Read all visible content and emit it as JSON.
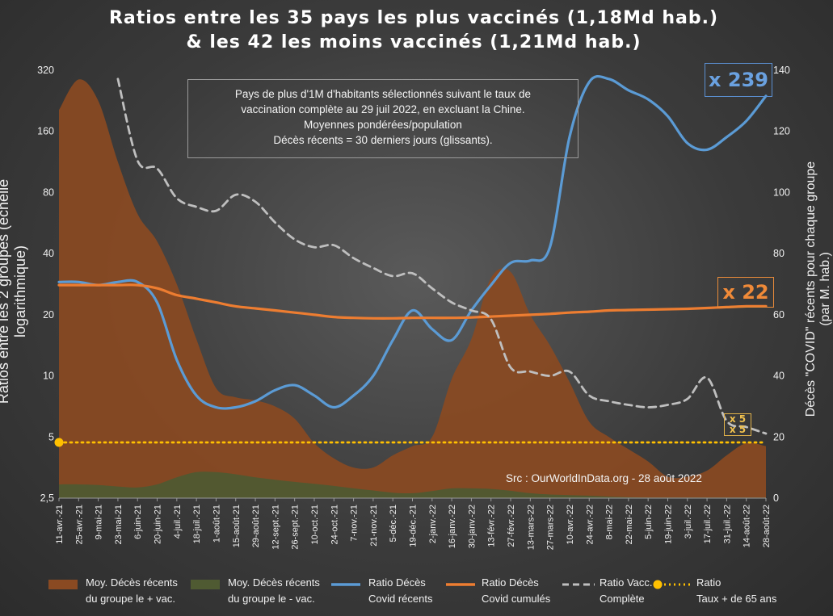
{
  "title_line1": "Ratios entre les 35 pays les plus vaccinés (1,18Md hab.)",
  "title_line2": "& les 42 les moins vaccinés (1,21Md hab.)",
  "note_lines": [
    "Pays de plus d'1M d'habitants sélectionnés suivant le taux de",
    "vaccination complète au 29 juil 2022, en excluant la Chine.",
    "Moyennes pondérées/population",
    "Décès récents = 30 derniers jours (glissants)."
  ],
  "source": "Src : OurWorldInData.org - 28 août 2022",
  "badges": {
    "blue": "x 239",
    "orange": "x 22",
    "small_top": "x 5",
    "small_bottom": "x 5"
  },
  "colors": {
    "brown_area": "#8a4a22",
    "green_area": "#4f5a32",
    "blue_line": "#5b9bd5",
    "orange_line": "#ed7d31",
    "grey_dash": "#bfbfbf",
    "yellow_dot": "#ffc000"
  },
  "chart_data": {
    "type": "line",
    "x": [
      "11-avr.-21",
      "25-avr.-21",
      "9-mai-21",
      "23-mai-21",
      "6-juin-21",
      "20-juin-21",
      "4-juil.-21",
      "18-juil.-21",
      "1-août-21",
      "15-août-21",
      "29-août-21",
      "12-sept.-21",
      "26-sept.-21",
      "10-oct.-21",
      "24-oct.-21",
      "7-nov.-21",
      "21-nov.-21",
      "5-déc.-21",
      "19-déc.-21",
      "2-janv.-22",
      "16-janv.-22",
      "30-janv.-22",
      "13-févr.-22",
      "27-févr.-22",
      "13-mars-22",
      "27-mars-22",
      "10-avr.-22",
      "24-avr.-22",
      "8-mai-22",
      "22-mai-22",
      "5-juin-22",
      "19-juin-22",
      "3-juil.-22",
      "17-juil.-22",
      "31-juil.-22",
      "14-août-22",
      "28-août-22"
    ],
    "yleft_label": "Ratios entre les 2 groupes (échelle logarithmique)",
    "yleft_scale": "log",
    "yleft_ticks": [
      "320",
      "160",
      "80",
      "40",
      "20",
      "10",
      "5",
      "2,5"
    ],
    "yleft_range": [
      2.5,
      320
    ],
    "yright_label": "Décès \"COVID\" récents pour chaque groupe (par M. hab.)",
    "yright_ticks": [
      "140",
      "120",
      "100",
      "80",
      "60",
      "40",
      "20",
      "0"
    ],
    "yright_range": [
      0,
      140
    ],
    "legend_position": "bottom",
    "series": [
      {
        "name": "Moy. Décès récents du groupe le + vac.",
        "legend_line1": "Moy. Décès récents",
        "legend_line2": "du groupe le + vac.",
        "type": "area",
        "axis": "right",
        "values": [
          127,
          137,
          130,
          110,
          93,
          84,
          70,
          52,
          36,
          33,
          32,
          30,
          26,
          18,
          13,
          10,
          10,
          14,
          17,
          20,
          39,
          52,
          72,
          74,
          60,
          50,
          38,
          25,
          20,
          16,
          12,
          7,
          7,
          9,
          14,
          18,
          17
        ]
      },
      {
        "name": "Moy. Décès récents du groupe le - vac.",
        "legend_line1": "Moy. Décès récents",
        "legend_line2": "du groupe le - vac.",
        "type": "area",
        "axis": "right",
        "values": [
          4.5,
          4.5,
          4.3,
          3.8,
          3.5,
          4.5,
          6.8,
          8.5,
          8.5,
          7.8,
          6.8,
          6.0,
          5.3,
          4.7,
          4.0,
          3.2,
          2.5,
          1.8,
          1.6,
          2.3,
          3.2,
          3.2,
          3.0,
          2.4,
          1.6,
          1.2,
          1.0,
          0.8,
          0.5,
          0.3,
          0.2,
          0.2,
          0.2,
          0.2,
          0.2,
          0.2,
          0.2
        ]
      },
      {
        "name": "Ratio Décès Covid récents",
        "legend_line1": "Ratio Décès",
        "legend_line2": "Covid récents",
        "type": "line",
        "axis": "left",
        "values": [
          29,
          29,
          28,
          29,
          29,
          23,
          12,
          8,
          7,
          7,
          7.5,
          8.5,
          9,
          8,
          7,
          8,
          10,
          15,
          21,
          17,
          15,
          21,
          28,
          36,
          37,
          43,
          150,
          280,
          290,
          255,
          230,
          190,
          140,
          130,
          150,
          180,
          239
        ]
      },
      {
        "name": "Ratio Décès Covid cumulés",
        "legend_line1": "Ratio Décès",
        "legend_line2": "Covid cumulés",
        "type": "line",
        "axis": "left",
        "values": [
          28,
          28,
          28,
          28,
          28,
          27,
          25,
          24,
          23,
          22,
          21.5,
          21,
          20.5,
          20,
          19.5,
          19.3,
          19.2,
          19.2,
          19.3,
          19.3,
          19.3,
          19.4,
          19.6,
          19.8,
          20,
          20.2,
          20.5,
          20.7,
          21,
          21.1,
          21.2,
          21.3,
          21.4,
          21.6,
          21.8,
          22,
          22
        ]
      },
      {
        "name": "Ratio Vacc. Complète",
        "legend_line1": "Ratio Vacc.",
        "legend_line2": "Complète",
        "type": "line",
        "style": "dashed",
        "axis": "left",
        "values": [
          null,
          null,
          null,
          290,
          115,
          105,
          75,
          68,
          65,
          78,
          72,
          57,
          47,
          43,
          44,
          38,
          34,
          31,
          32,
          27,
          23,
          21,
          19,
          11,
          10.5,
          10,
          10.5,
          8,
          7.5,
          7.2,
          7,
          7.2,
          7.7,
          9.8,
          6,
          5.6,
          5.2
        ]
      },
      {
        "name": "Ratio Taux + de 65 ans",
        "legend_line1": "Ratio",
        "legend_line2": "Taux + de 65 ans",
        "type": "line",
        "style": "dotted",
        "axis": "left",
        "values": [
          4.7,
          4.7,
          4.7,
          4.7,
          4.7,
          4.7,
          4.7,
          4.7,
          4.7,
          4.7,
          4.7,
          4.7,
          4.7,
          4.7,
          4.7,
          4.7,
          4.7,
          4.7,
          4.7,
          4.7,
          4.7,
          4.7,
          4.7,
          4.7,
          4.7,
          4.7,
          4.7,
          4.7,
          4.7,
          4.7,
          4.7,
          4.7,
          4.7,
          4.7,
          4.7,
          4.7,
          4.7
        ]
      }
    ]
  }
}
